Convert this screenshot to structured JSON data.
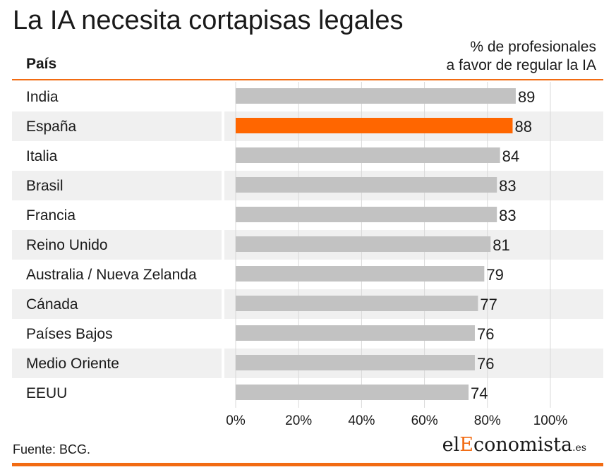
{
  "title": "La IA necesita cortapisas legales",
  "header": {
    "left_label": "País",
    "right_label_line1": "% de profesionales",
    "right_label_line2": "a favor de regular la IA"
  },
  "source": "Fuente: BCG.",
  "logo": {
    "part1": "el",
    "part2": "E",
    "part3": "conomista",
    "tld": ".es"
  },
  "colors": {
    "accent": "#f26b12",
    "highlight_bar": "#ff6600",
    "bar": "#c2c2c2",
    "band": "#f0f0f0",
    "grid": "#d9d9d9"
  },
  "chart_data": {
    "type": "bar",
    "orientation": "horizontal",
    "categories": [
      "India",
      "España",
      "Italia",
      "Brasil",
      "Francia",
      "Reino Unido",
      "Australia / Nueva Zelanda",
      "Cánada",
      "Países Bajos",
      "Medio Oriente",
      "EEUU"
    ],
    "values": [
      89,
      88,
      84,
      83,
      83,
      81,
      79,
      77,
      76,
      76,
      74
    ],
    "highlight": "España",
    "xlim": [
      0,
      100
    ],
    "xticks": [
      0,
      20,
      40,
      60,
      80,
      100
    ],
    "xtick_labels": [
      "0%",
      "20%",
      "40%",
      "60%",
      "80%",
      "100%"
    ],
    "grid": true
  }
}
